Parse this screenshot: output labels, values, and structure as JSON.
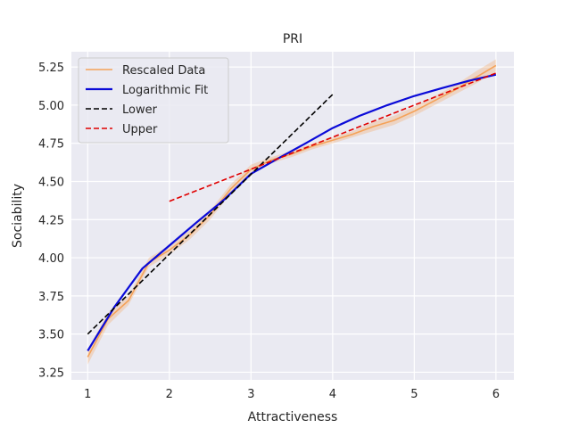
{
  "chart_data": {
    "type": "line",
    "title": "PRI",
    "xlabel": "Attractiveness",
    "ylabel": "Sociability",
    "xlim": [
      0.8,
      6.22
    ],
    "ylim": [
      3.2,
      5.35
    ],
    "xticks": [
      1,
      2,
      3,
      4,
      5,
      6
    ],
    "xtick_labels": [
      "1",
      "2",
      "3",
      "4",
      "5",
      "6"
    ],
    "yticks": [
      3.25,
      3.5,
      3.75,
      4.0,
      4.25,
      4.5,
      4.75,
      5.0,
      5.25
    ],
    "ytick_labels": [
      "3.25",
      "3.50",
      "3.75",
      "4.00",
      "4.25",
      "4.50",
      "4.75",
      "5.00",
      "5.25"
    ],
    "grid": true,
    "legend": {
      "position": "top-left"
    },
    "series": [
      {
        "name": "Rescaled Data",
        "color": "#f4a259",
        "style": "solid",
        "band": true,
        "x": [
          1.0,
          1.25,
          1.5,
          1.75,
          2.0,
          2.25,
          2.5,
          2.75,
          3.0,
          3.25,
          3.5,
          3.75,
          4.0,
          4.25,
          4.5,
          4.75,
          5.0,
          5.25,
          5.5,
          5.75,
          6.0
        ],
        "y": [
          3.35,
          3.6,
          3.72,
          3.97,
          4.05,
          4.15,
          4.28,
          4.45,
          4.58,
          4.64,
          4.68,
          4.73,
          4.77,
          4.81,
          4.86,
          4.9,
          4.96,
          5.03,
          5.1,
          5.18,
          5.26
        ],
        "band_halfwidth": [
          0.05,
          0.04,
          0.03,
          0.03,
          0.03,
          0.03,
          0.03,
          0.03,
          0.03,
          0.02,
          0.02,
          0.02,
          0.02,
          0.02,
          0.03,
          0.03,
          0.03,
          0.03,
          0.03,
          0.04,
          0.04
        ]
      },
      {
        "name": "Logarithmic Fit",
        "color": "#0a0ad8",
        "style": "solid",
        "x": [
          1.0,
          1.33,
          1.67,
          2.0,
          2.33,
          2.67,
          3.0,
          3.33,
          3.67,
          4.0,
          4.33,
          4.67,
          5.0,
          5.33,
          5.67,
          6.0
        ],
        "y": [
          3.39,
          3.68,
          3.93,
          4.08,
          4.23,
          4.38,
          4.55,
          4.65,
          4.75,
          4.85,
          4.93,
          5.0,
          5.06,
          5.11,
          5.16,
          5.2
        ]
      },
      {
        "name": "Lower",
        "color": "#000000",
        "style": "dashed",
        "x": [
          1.0,
          4.0
        ],
        "y": [
          3.5,
          5.07
        ]
      },
      {
        "name": "Upper",
        "color": "#e00000",
        "style": "dashed",
        "x": [
          2.0,
          6.0
        ],
        "y": [
          4.37,
          5.21
        ]
      }
    ]
  }
}
